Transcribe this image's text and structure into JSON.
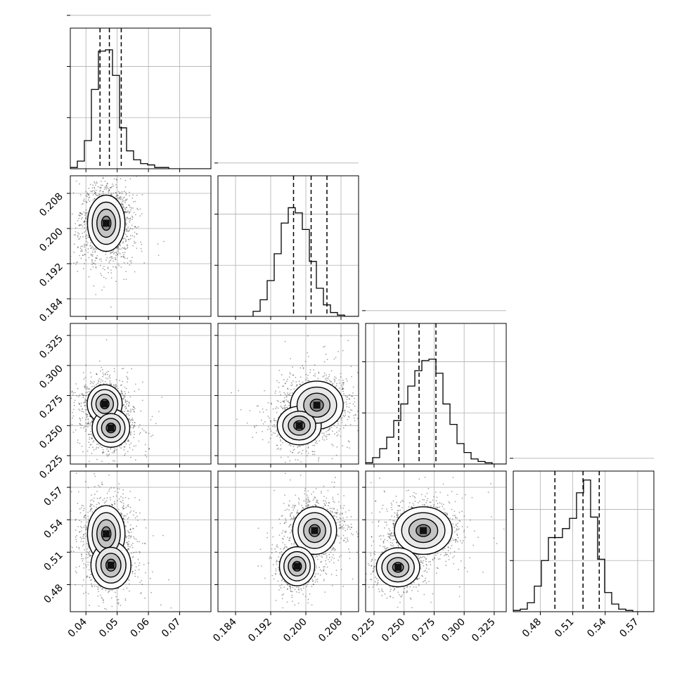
{
  "chart_data": {
    "type": "corner",
    "parameters": 4,
    "grid": true,
    "colors": {
      "ink": "#000000",
      "grid": "#b0b0b0",
      "hist": "#000000"
    },
    "axes": [
      {
        "range": [
          0.035,
          0.08
        ],
        "ticks": [
          "0.04",
          "0.05",
          "0.06",
          "0.07"
        ],
        "tick_values": [
          0.04,
          0.05,
          0.06,
          0.07
        ]
      },
      {
        "range": [
          0.18,
          0.212
        ],
        "ticks": [
          "0.184",
          "0.192",
          "0.200",
          "0.208"
        ],
        "tick_values": [
          0.184,
          0.192,
          0.2,
          0.208
        ]
      },
      {
        "range": [
          0.218,
          0.335
        ],
        "ticks": [
          "0.225",
          "0.250",
          "0.275",
          "0.300",
          "0.325"
        ],
        "tick_values": [
          0.225,
          0.25,
          0.275,
          0.3,
          0.325
        ]
      },
      {
        "range": [
          0.455,
          0.585
        ],
        "ticks": [
          "0.48",
          "0.51",
          "0.54",
          "0.57"
        ],
        "tick_values": [
          0.48,
          0.51,
          0.54,
          0.57
        ]
      }
    ],
    "quantiles": [
      [
        0.0445,
        0.0475,
        0.0513
      ],
      [
        0.1972,
        0.2012,
        0.2048
      ],
      [
        0.2455,
        0.2625,
        0.2765
      ],
      [
        0.4935,
        0.5195,
        0.5345
      ]
    ],
    "histograms": [
      {
        "edges_start": 0.035,
        "bin_width": 0.00225,
        "counts": [
          1,
          6,
          22,
          62,
          92,
          93,
          73,
          32,
          14,
          7,
          4,
          3,
          1,
          1,
          0,
          0,
          0,
          0,
          0,
          0
        ]
      },
      {
        "edges_start": 0.18,
        "bin_width": 0.0016,
        "counts": [
          0,
          0,
          0,
          0,
          0,
          4,
          13,
          28,
          49,
          73,
          85,
          81,
          68,
          43,
          22,
          9,
          3,
          1,
          0,
          0
        ]
      },
      {
        "edges_start": 0.218,
        "bin_width": 0.00585,
        "counts": [
          1,
          5,
          12,
          21,
          34,
          47,
          61,
          73,
          81,
          82,
          71,
          47,
          31,
          16,
          9,
          4,
          2,
          1,
          0,
          0
        ]
      },
      {
        "edges_start": 0.455,
        "bin_width": 0.0065,
        "counts": [
          1,
          2,
          7,
          20,
          40,
          58,
          58,
          65,
          73,
          93,
          103,
          74,
          41,
          15,
          6,
          2,
          1,
          0,
          0,
          0
        ]
      }
    ],
    "joint_modes": {
      "1-0": [
        {
          "x": 0.0465,
          "y": 0.2012,
          "sx": 0.003,
          "sy": 0.0032,
          "w": 1.0
        }
      ],
      "2-0": [
        {
          "x": 0.046,
          "y": 0.268,
          "sx": 0.0028,
          "sy": 0.008,
          "w": 0.8
        },
        {
          "x": 0.048,
          "y": 0.248,
          "sx": 0.003,
          "sy": 0.008,
          "w": 0.6
        }
      ],
      "3-0": [
        {
          "x": 0.0465,
          "y": 0.527,
          "sx": 0.003,
          "sy": 0.013,
          "w": 1.0
        },
        {
          "x": 0.048,
          "y": 0.498,
          "sx": 0.0032,
          "sy": 0.011,
          "w": 0.5
        }
      ],
      "2-1": [
        {
          "x": 0.2025,
          "y": 0.267,
          "sx": 0.003,
          "sy": 0.01,
          "w": 1.0
        },
        {
          "x": 0.1985,
          "y": 0.25,
          "sx": 0.0025,
          "sy": 0.008,
          "w": 0.6
        }
      ],
      "3-1": [
        {
          "x": 0.202,
          "y": 0.53,
          "sx": 0.0025,
          "sy": 0.011,
          "w": 1.0
        },
        {
          "x": 0.198,
          "y": 0.497,
          "sx": 0.002,
          "sy": 0.009,
          "w": 0.5
        }
      ],
      "3-2": [
        {
          "x": 0.266,
          "y": 0.53,
          "sx": 0.012,
          "sy": 0.011,
          "w": 1.0
        },
        {
          "x": 0.245,
          "y": 0.496,
          "sx": 0.009,
          "sy": 0.009,
          "w": 0.5
        }
      ]
    }
  }
}
